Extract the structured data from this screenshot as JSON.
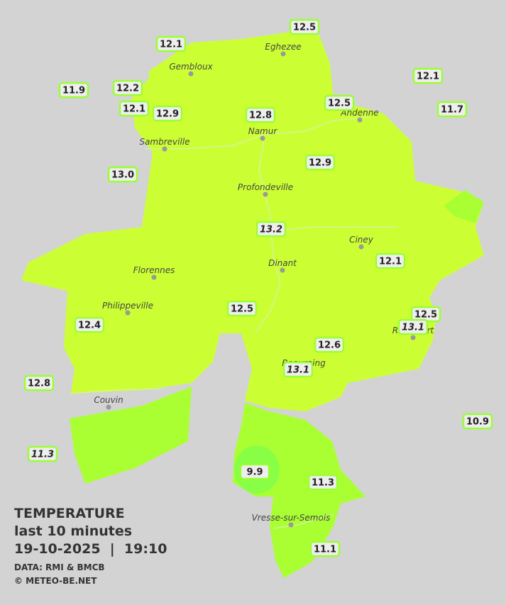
{
  "title": "TEMPERATURE",
  "subtitle": "last 10 minutes",
  "datetime": "19-10-2025  |  19:10",
  "credits": [
    "DATA: RMI & BMCB",
    "© METEO-BE.NET"
  ],
  "towns": [
    "Eghezee",
    "Gembloux",
    "Andenne",
    "Namur",
    "Sambreville",
    "Profondeville",
    "Ciney",
    "Florennes",
    "Dinant",
    "Philippeville",
    "Rochefort",
    "Beauraing",
    "Couvin",
    "Vresse-sur-Semois"
  ],
  "stations": [
    "12.5",
    "12.1",
    "12.1",
    "11.9",
    "12.2",
    "12.1",
    "12.9",
    "12.8",
    "12.5",
    "11.7",
    "13.0",
    "12.9",
    "13.2",
    "12.1",
    "12.5",
    "12.4",
    "12.5",
    "13.1",
    "12.6",
    "13.1",
    "12.8",
    "10.9",
    "11.3",
    "9.9",
    "11.3",
    "11.1"
  ]
}
